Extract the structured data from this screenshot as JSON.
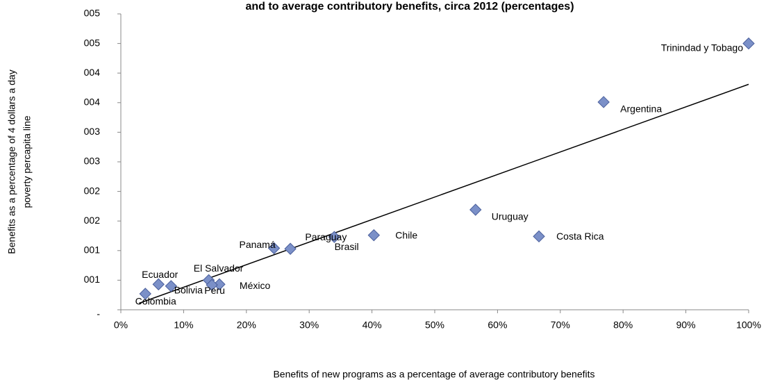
{
  "chart_data": {
    "type": "scatter",
    "title": "and to average contributory benefits, circa 2012 (percentages)",
    "x_label": "Benefits of new programs as a percentage of average contributory benefits",
    "y_label": [
      "Benefits as a percentage of 4 dollars a day",
      "poverty percapita line"
    ],
    "labels": [
      "Trinindad y Tobago",
      "Argentina",
      "Uruguay",
      "Costa Rica",
      "Chile",
      "Paraguay",
      "Brasil",
      "Panamá",
      "El Salvador",
      "México",
      "Peru",
      "Ecuador",
      "Bolivia",
      "Colombia"
    ],
    "x": [
      100,
      76.9,
      56.5,
      66.6,
      40.3,
      34.0,
      27.0,
      24.4,
      14.0,
      15.7,
      14.5,
      6.0,
      8.0,
      3.9
    ],
    "values": [
      4.5,
      3.51,
      1.69,
      1.24,
      1.26,
      1.23,
      1.03,
      1.04,
      0.5,
      0.43,
      0.42,
      0.43,
      0.4,
      0.27
    ],
    "color": "#7b90c8",
    "trendline": {
      "x": [
        2.9,
        100
      ],
      "y": [
        0.11,
        3.81
      ]
    },
    "xlim": [
      0,
      100
    ],
    "xticks": [
      {
        "value": 0,
        "label": "0%"
      },
      {
        "value": 10,
        "label": "10%"
      },
      {
        "value": 20,
        "label": "20%"
      },
      {
        "value": 30,
        "label": "30%"
      },
      {
        "value": 40,
        "label": "40%"
      },
      {
        "value": 50,
        "label": "50%"
      },
      {
        "value": 60,
        "label": "60%"
      },
      {
        "value": 70,
        "label": "70%"
      },
      {
        "value": 80,
        "label": "80%"
      },
      {
        "value": 90,
        "label": "90%"
      },
      {
        "value": 100,
        "label": "100%"
      }
    ],
    "ylim": [
      0,
      5
    ],
    "yticks": [
      {
        "value": 0,
        "label": "-"
      },
      {
        "value": 0.5,
        "label": "001"
      },
      {
        "value": 1,
        "label": "001"
      },
      {
        "value": 1.5,
        "label": "002"
      },
      {
        "value": 2,
        "label": "002"
      },
      {
        "value": 2.5,
        "label": "003"
      },
      {
        "value": 3,
        "label": "003"
      },
      {
        "value": 3.5,
        "label": "004"
      },
      {
        "value": 4,
        "label": "004"
      },
      {
        "value": 4.5,
        "label": "005"
      },
      {
        "value": 5,
        "label": "005"
      }
    ]
  }
}
